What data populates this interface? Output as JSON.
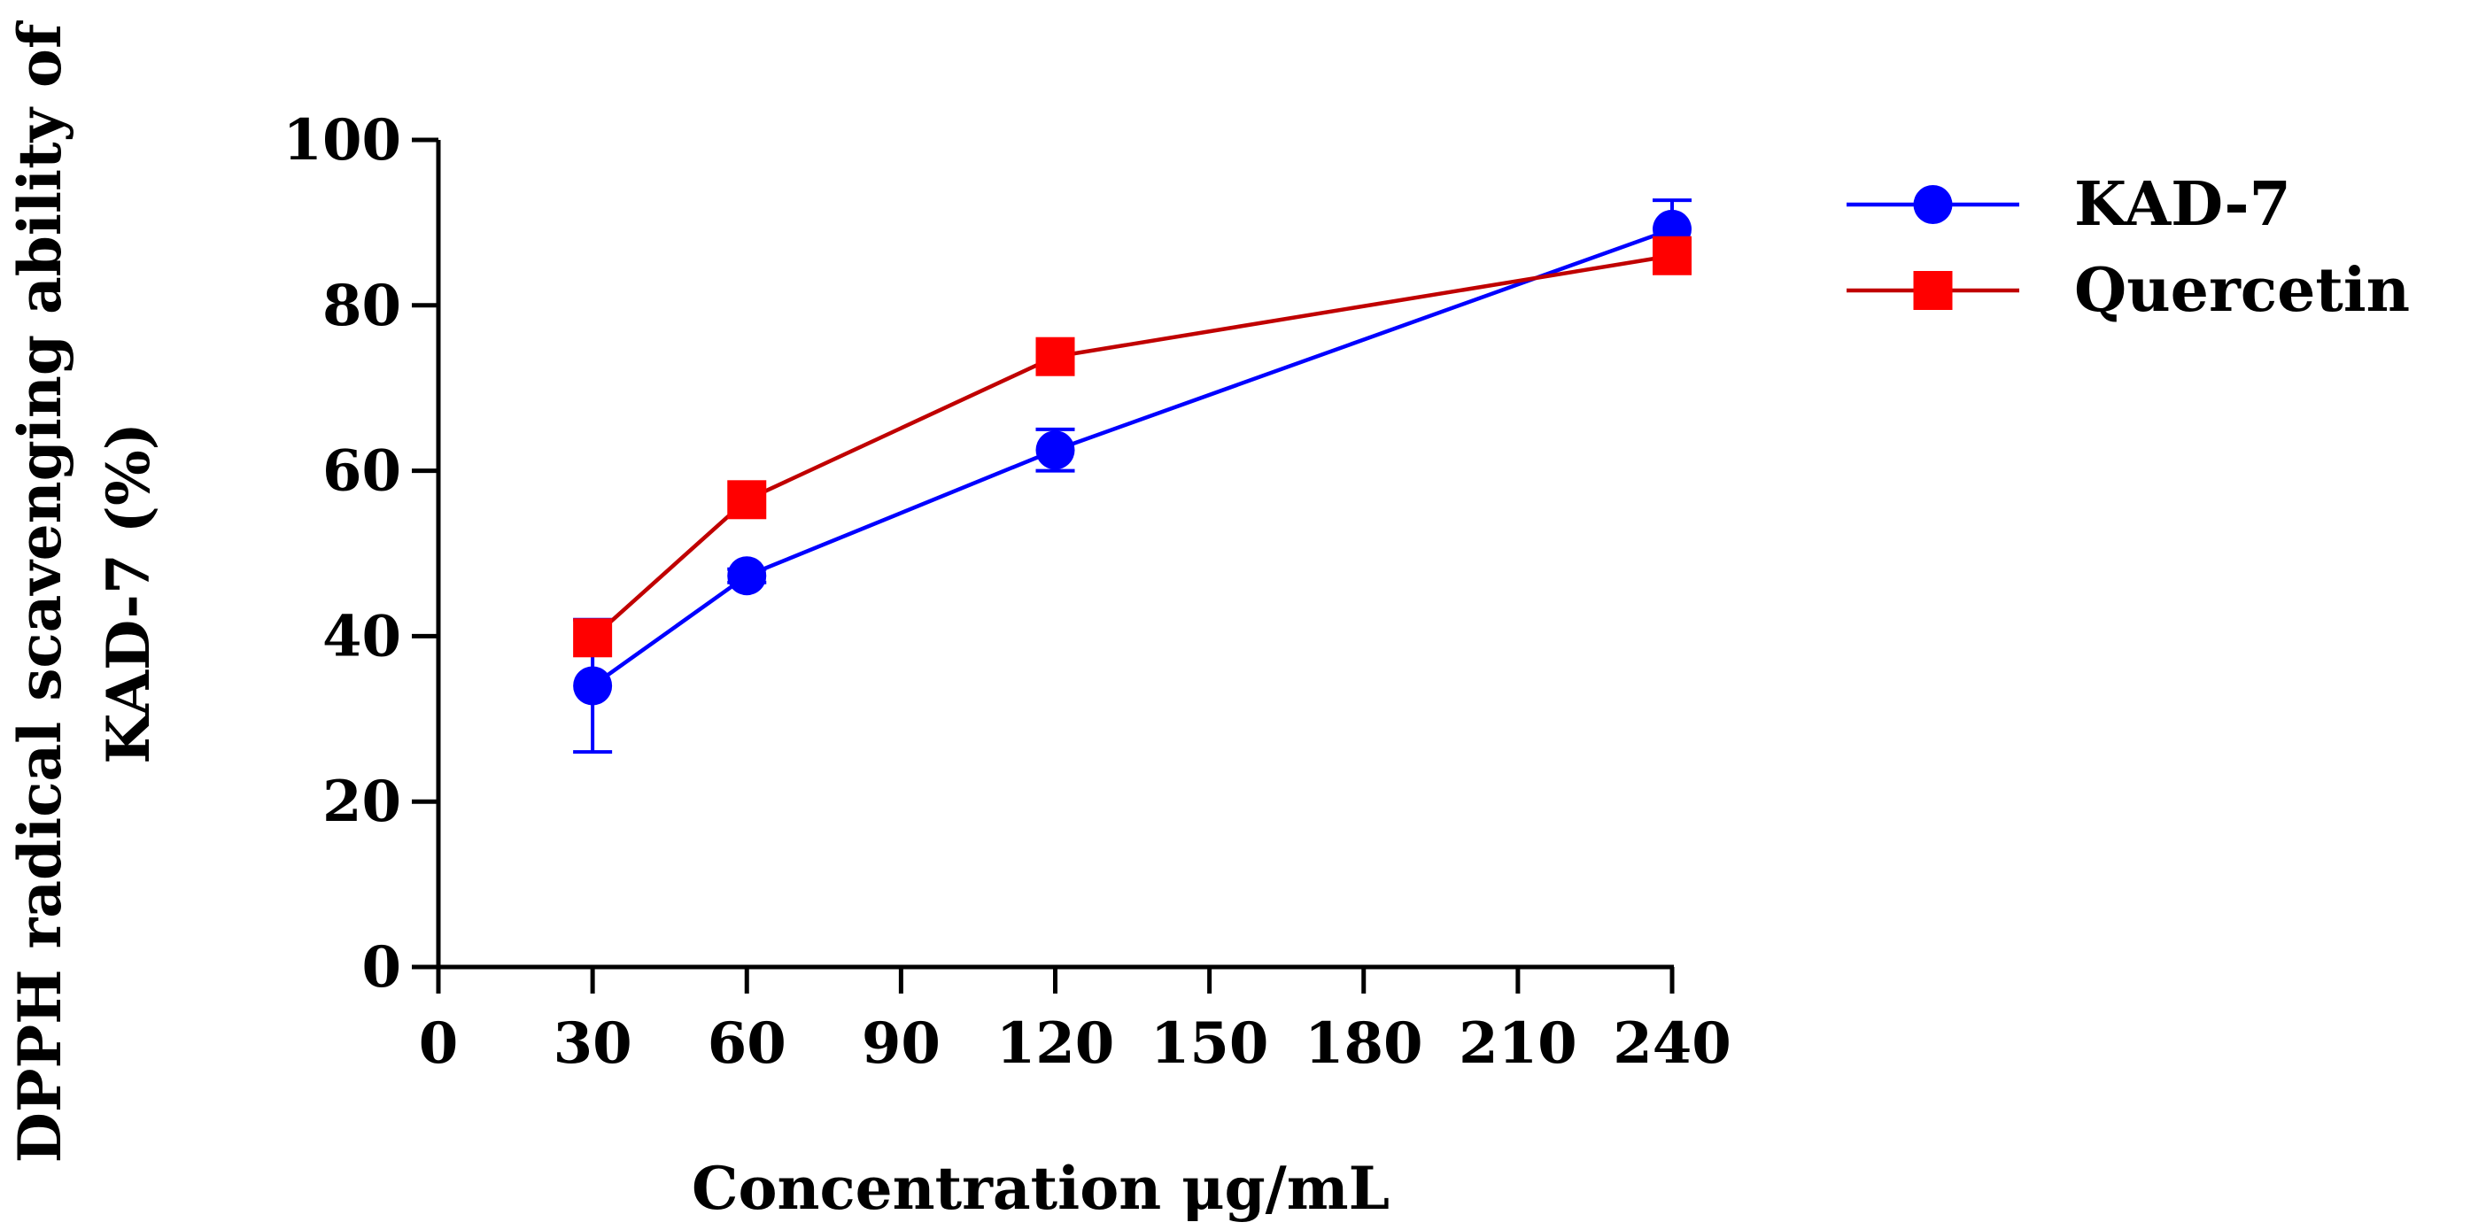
{
  "chart_data": {
    "type": "line",
    "title": "",
    "xlabel": "Concentration μg/mL",
    "ylabel_line1": "DPPH radical scavenging ability of",
    "ylabel_line2": "KAD-7 (%)",
    "x_ticks": [
      0,
      30,
      60,
      90,
      120,
      150,
      180,
      210,
      240
    ],
    "y_ticks": [
      0,
      20,
      40,
      60,
      80,
      100
    ],
    "xlim": [
      0,
      240
    ],
    "ylim": [
      0,
      100
    ],
    "grid": false,
    "legend_position": "top-right",
    "series": [
      {
        "name": "KAD-7",
        "color": "#0000ff",
        "marker": "circle",
        "x": [
          30,
          60,
          120,
          240
        ],
        "y": [
          34,
          47.3,
          62.5,
          89.2
        ],
        "error": [
          8,
          0.8,
          2.5,
          3.5
        ]
      },
      {
        "name": "Quercetin",
        "color": "#ff0000",
        "line_color": "#c00000",
        "marker": "square",
        "x": [
          30,
          60,
          120,
          240
        ],
        "y": [
          39.8,
          56.5,
          73.8,
          86
        ],
        "error": [
          0,
          0,
          0,
          0
        ]
      }
    ]
  }
}
